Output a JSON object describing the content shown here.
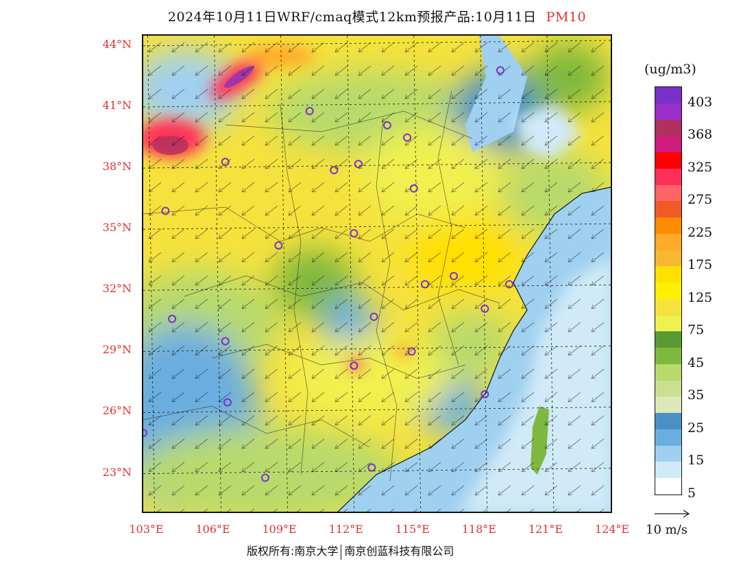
{
  "title": {
    "text": "2024年10月11日WRF/cmaq模式12km预报产品:10月11日",
    "variable": "PM10"
  },
  "lat_labels": [
    "44°N",
    "41°N",
    "38°N",
    "35°N",
    "32°N",
    "29°N",
    "26°N",
    "23°N"
  ],
  "lon_labels": [
    "103°E",
    "106°E",
    "109°E",
    "112°E",
    "115°E",
    "118°E",
    "121°E",
    "124°E"
  ],
  "colorbar": {
    "unit": "(ug/m3)",
    "labels": [
      "403",
      "368",
      "325",
      "275",
      "225",
      "175",
      "125",
      "75",
      "45",
      "35",
      "25",
      "15",
      "5"
    ],
    "colors": [
      "#7a30c8",
      "#9a2ec8",
      "#b03060",
      "#d01c7c",
      "#ff0000",
      "#ff3058",
      "#ff6464",
      "#f05a28",
      "#ff8c00",
      "#ffaa2a",
      "#f5b830",
      "#ffe000",
      "#fff000",
      "#f5e23c",
      "#f0f050",
      "#5a9a32",
      "#7fb83e",
      "#b8da6c",
      "#c8e090",
      "#dce8b8",
      "#4a90c8",
      "#6aaee0",
      "#a0d0f0",
      "#d0eaf8",
      "#ffffff"
    ]
  },
  "wind_reference": "10 m/s",
  "footer": {
    "copyright": "版权所有:南京大学",
    "company": "南京创蓝科技有限公司"
  },
  "map": {
    "lon_range": [
      102.8,
      124
    ],
    "lat_range": [
      21,
      44.5
    ],
    "city_markers": [
      {
        "lon": 118.9,
        "lat": 42.8
      },
      {
        "lon": 110.3,
        "lat": 40.8
      },
      {
        "lon": 113.8,
        "lat": 40.1
      },
      {
        "lon": 114.7,
        "lat": 39.5
      },
      {
        "lon": 106.5,
        "lat": 38.3
      },
      {
        "lon": 111.4,
        "lat": 37.9
      },
      {
        "lon": 112.5,
        "lat": 38.2
      },
      {
        "lon": 115.0,
        "lat": 37.0
      },
      {
        "lon": 103.8,
        "lat": 35.9
      },
      {
        "lon": 112.3,
        "lat": 34.8
      },
      {
        "lon": 108.9,
        "lat": 34.2
      },
      {
        "lon": 115.5,
        "lat": 32.3
      },
      {
        "lon": 116.8,
        "lat": 32.7
      },
      {
        "lon": 119.3,
        "lat": 32.3
      },
      {
        "lon": 104.1,
        "lat": 30.6
      },
      {
        "lon": 113.2,
        "lat": 30.7
      },
      {
        "lon": 118.2,
        "lat": 31.1
      },
      {
        "lon": 106.5,
        "lat": 29.5
      },
      {
        "lon": 114.9,
        "lat": 29.0
      },
      {
        "lon": 112.3,
        "lat": 28.3
      },
      {
        "lon": 106.6,
        "lat": 26.5
      },
      {
        "lon": 118.2,
        "lat": 26.9
      },
      {
        "lon": 102.8,
        "lat": 25.0
      },
      {
        "lon": 108.3,
        "lat": 22.8
      },
      {
        "lon": 113.1,
        "lat": 23.3
      }
    ]
  }
}
